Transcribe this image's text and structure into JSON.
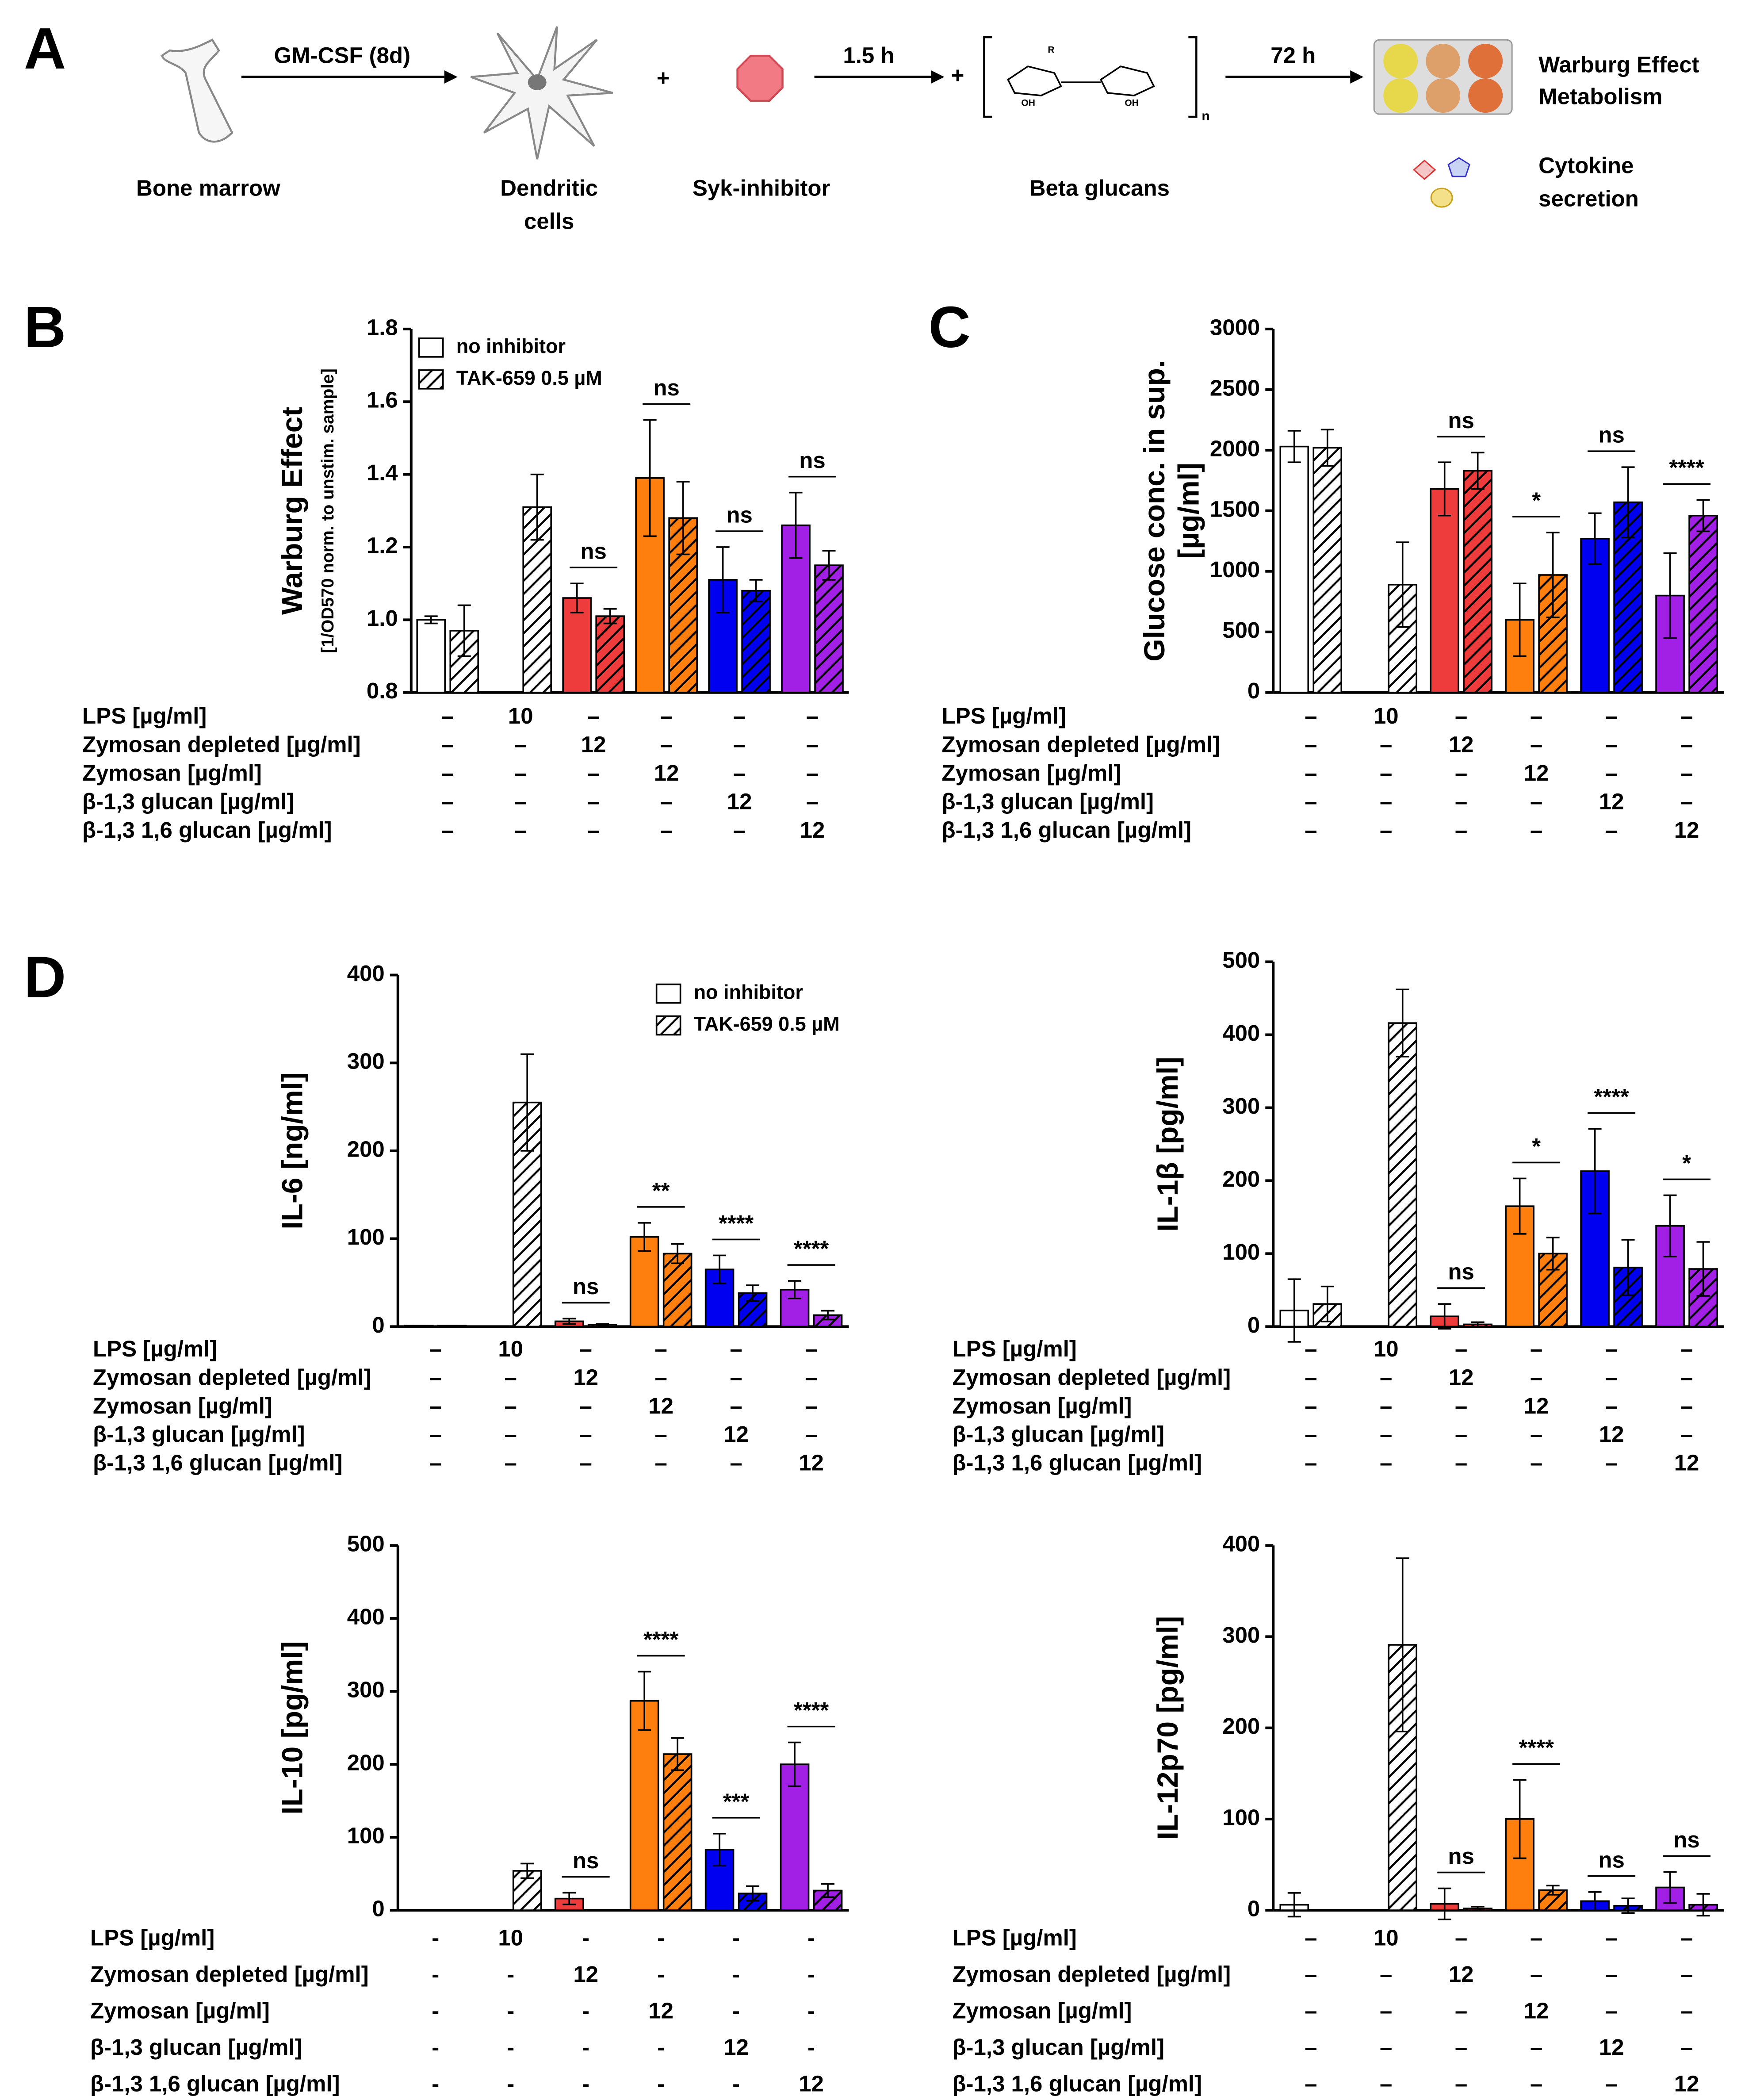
{
  "scheme": {
    "panel": "A",
    "arrows": [
      "GM-CSF (8d)",
      "1.5 h",
      "72 h"
    ],
    "plus": "+",
    "labels": [
      "Bone marrow",
      [
        "Dendritic",
        "cells"
      ],
      "Syk-inhibitor",
      "Beta glucans"
    ],
    "outputs": [
      [
        "Warburg Effect",
        "Metabolism"
      ],
      [
        "Cytokine",
        "secretion"
      ]
    ],
    "structure": {
      "r": "R",
      "oh": "OH",
      "n": "n"
    }
  },
  "chart_data": [
    {
      "type": "bar",
      "panel": "B",
      "ylabel": [
        "Warburg Effect",
        "[1/OD570 norm. to unstim. sample]"
      ],
      "categories": [
        null,
        null,
        null,
        null,
        null,
        null
      ],
      "colors": [
        "#ffffff",
        "#ffffff",
        "#ee3b3b",
        "#ff7f0e",
        "#0000f0",
        "#a21fe6"
      ],
      "series": [
        {
          "name": "no inhibitor",
          "values": [
            1.0,
            null,
            1.06,
            1.39,
            1.11,
            1.26
          ],
          "errors": [
            0.01,
            null,
            0.04,
            0.16,
            0.09,
            0.09
          ]
        },
        {
          "name": "TAK-659 0.5 µM",
          "hatch": true,
          "values": [
            0.97,
            1.31,
            1.01,
            1.28,
            1.08,
            1.15
          ],
          "errors": [
            0.07,
            0.09,
            0.02,
            0.1,
            0.03,
            0.04
          ]
        }
      ],
      "annotations": [
        null,
        null,
        "ns",
        "ns",
        "ns",
        "ns"
      ],
      "legend": "upper left",
      "ylim": [
        0.8,
        1.8
      ],
      "yticks": [
        0.8,
        {
          "value": 1,
          "label": "1.0"
        },
        1.2,
        1.4,
        1.6,
        1.8
      ],
      "conditions": [
        {
          "label": "LPS [µg/ml]",
          "cells": [
            "–",
            "10",
            "–",
            "–",
            "–",
            "–"
          ]
        },
        {
          "label": "Zymosan depleted [µg/ml]",
          "cells": [
            "–",
            "–",
            "12",
            "–",
            "–",
            "–"
          ]
        },
        {
          "label": "Zymosan [µg/ml]",
          "cells": [
            "–",
            "–",
            "–",
            "12",
            "–",
            "–"
          ]
        },
        {
          "label": "β-1,3 glucan [µg/ml]",
          "cells": [
            "–",
            "–",
            "–",
            "–",
            "12",
            "–"
          ]
        },
        {
          "label": "β-1,3 1,6 glucan [µg/ml]",
          "cells": [
            "–",
            "–",
            "–",
            "–",
            "–",
            "12"
          ]
        }
      ]
    },
    {
      "type": "bar",
      "panel": "C",
      "ylabel": [
        "Glucose conc. in sup.",
        "[µg/ml]"
      ],
      "categories": [
        null,
        null,
        null,
        null,
        null,
        null
      ],
      "colors": [
        "#ffffff",
        "#ffffff",
        "#ee3b3b",
        "#ff7f0e",
        "#0000f0",
        "#a21fe6"
      ],
      "series": [
        {
          "values": [
            2030,
            null,
            1680,
            600,
            1270,
            800
          ],
          "errors": [
            130,
            null,
            220,
            300,
            210,
            350
          ]
        },
        {
          "hatch": true,
          "values": [
            2020,
            890,
            1830,
            970,
            1570,
            1460
          ],
          "errors": [
            150,
            350,
            150,
            350,
            290,
            130
          ]
        }
      ],
      "annotations": [
        null,
        null,
        "ns",
        "*",
        "ns",
        "****"
      ],
      "ylim": [
        0,
        3000
      ],
      "yticks": [
        0,
        500,
        1000,
        1500,
        2000,
        2500,
        3000
      ],
      "conditions": [
        {
          "label": "LPS [µg/ml]",
          "cells": [
            "–",
            "10",
            "–",
            "–",
            "–",
            "–"
          ]
        },
        {
          "label": "Zymosan depleted [µg/ml]",
          "cells": [
            "–",
            "–",
            "12",
            "–",
            "–",
            "–"
          ]
        },
        {
          "label": "Zymosan [µg/ml]",
          "cells": [
            "–",
            "–",
            "–",
            "12",
            "–",
            "–"
          ]
        },
        {
          "label": "β-1,3 glucan [µg/ml]",
          "cells": [
            "–",
            "–",
            "–",
            "–",
            "12",
            "–"
          ]
        },
        {
          "label": "β-1,3 1,6 glucan [µg/ml]",
          "cells": [
            "–",
            "–",
            "–",
            "–",
            "–",
            "12"
          ]
        }
      ]
    },
    {
      "type": "bar",
      "panel": "D",
      "ylabel": [
        "IL-6 [ng/ml]"
      ],
      "categories": [
        null,
        null,
        null,
        null,
        null,
        null
      ],
      "colors": [
        "#ffffff",
        "#ffffff",
        "#ee3b3b",
        "#ff7f0e",
        "#0000f0",
        "#a21fe6"
      ],
      "series": [
        {
          "name": "no inhibitor",
          "values": [
            1,
            null,
            6,
            102,
            65,
            42
          ],
          "errors": [
            0,
            null,
            3,
            16,
            16,
            10
          ]
        },
        {
          "name": "TAK-659 0.5 µM",
          "hatch": true,
          "values": [
            1,
            255,
            2,
            83,
            38,
            13
          ],
          "errors": [
            0,
            55,
            1,
            11,
            9,
            5
          ]
        }
      ],
      "annotations": [
        null,
        null,
        "ns",
        "**",
        "****",
        "****"
      ],
      "legend": "upper right",
      "ylim": [
        0,
        400
      ],
      "yticks": [
        0,
        100,
        200,
        300,
        400
      ],
      "conditions": [
        {
          "label": "LPS [µg/ml]",
          "cells": [
            "–",
            "10",
            "–",
            "–",
            "–",
            "–"
          ]
        },
        {
          "label": "Zymosan depleted [µg/ml]",
          "cells": [
            "–",
            "–",
            "12",
            "–",
            "–",
            "–"
          ]
        },
        {
          "label": "Zymosan [µg/ml]",
          "cells": [
            "–",
            "–",
            "–",
            "12",
            "–",
            "–"
          ]
        },
        {
          "label": "β-1,3 glucan [µg/ml]",
          "cells": [
            "–",
            "–",
            "–",
            "–",
            "12",
            "–"
          ]
        },
        {
          "label": "β-1,3 1,6 glucan [µg/ml]",
          "cells": [
            "–",
            "–",
            "–",
            "–",
            "–",
            "12"
          ]
        }
      ]
    },
    {
      "type": "bar",
      "ylabel": [
        "IL-1β [pg/ml]"
      ],
      "categories": [
        null,
        null,
        null,
        null,
        null,
        null
      ],
      "colors": [
        "#ffffff",
        "#ffffff",
        "#ee3b3b",
        "#ff7f0e",
        "#0000f0",
        "#a21fe6"
      ],
      "series": [
        {
          "values": [
            22,
            null,
            14,
            165,
            213,
            138
          ],
          "errors": [
            43,
            null,
            17,
            38,
            58,
            42
          ]
        },
        {
          "hatch": true,
          "values": [
            31,
            416,
            3,
            100,
            81,
            79
          ],
          "errors": [
            24,
            46,
            3,
            22,
            38,
            37
          ]
        }
      ],
      "annotations": [
        null,
        null,
        "ns",
        "*",
        "****",
        "*"
      ],
      "ylim": [
        0,
        500
      ],
      "yticks": [
        0,
        100,
        200,
        300,
        400,
        500
      ],
      "conditions": [
        {
          "label": "LPS [µg/ml]",
          "cells": [
            "–",
            "10",
            "–",
            "–",
            "–",
            "–"
          ]
        },
        {
          "label": "Zymosan depleted [µg/ml]",
          "cells": [
            "–",
            "–",
            "12",
            "–",
            "–",
            "–"
          ]
        },
        {
          "label": "Zymosan [µg/ml]",
          "cells": [
            "–",
            "–",
            "–",
            "12",
            "–",
            "–"
          ]
        },
        {
          "label": "β-1,3 glucan [µg/ml]",
          "cells": [
            "–",
            "–",
            "–",
            "–",
            "12",
            "–"
          ]
        },
        {
          "label": "β-1,3 1,6 glucan [µg/ml]",
          "cells": [
            "–",
            "–",
            "–",
            "–",
            "–",
            "12"
          ]
        }
      ]
    },
    {
      "type": "bar",
      "ylabel": [
        "IL-10 [pg/ml]"
      ],
      "categories": [
        null,
        null,
        null,
        null,
        null,
        null
      ],
      "colors": [
        "#ffffff",
        "#ffffff",
        "#ee3b3b",
        "#ff7f0e",
        "#0000f0",
        "#a21fe6"
      ],
      "series": [
        {
          "values": [
            0,
            null,
            16,
            287,
            83,
            200
          ],
          "errors": [
            0,
            null,
            8,
            40,
            22,
            30
          ]
        },
        {
          "hatch": true,
          "values": [
            0,
            54,
            0,
            214,
            23,
            27
          ],
          "errors": [
            0,
            10,
            0,
            22,
            10,
            9
          ]
        }
      ],
      "annotations": [
        null,
        null,
        "ns",
        "****",
        "***",
        "****"
      ],
      "ylim": [
        0,
        500
      ],
      "yticks": [
        0,
        100,
        200,
        300,
        400,
        500
      ],
      "conditions": [
        {
          "label": "LPS [µg/ml]",
          "cells": [
            "-",
            "10",
            "-",
            "-",
            "-",
            "-"
          ]
        },
        {
          "label": "Zymosan depleted [µg/ml]",
          "cells": [
            "-",
            "-",
            "12",
            "-",
            "-",
            "-"
          ]
        },
        {
          "label": "Zymosan [µg/ml]",
          "cells": [
            "-",
            "-",
            "-",
            "12",
            "-",
            "-"
          ]
        },
        {
          "label": "β-1,3 glucan [µg/ml]",
          "cells": [
            "-",
            "-",
            "-",
            "-",
            "12",
            "-"
          ]
        },
        {
          "label": "β-1,3 1,6 glucan [µg/ml]",
          "cells": [
            "-",
            "-",
            "-",
            "-",
            "-",
            "12"
          ]
        }
      ]
    },
    {
      "type": "bar",
      "ylabel": [
        "IL-12p70 [pg/ml]"
      ],
      "categories": [
        null,
        null,
        null,
        null,
        null,
        null
      ],
      "colors": [
        "#ffffff",
        "#ffffff",
        "#ee3b3b",
        "#ff7f0e",
        "#0000f0",
        "#a21fe6"
      ],
      "series": [
        {
          "values": [
            6,
            null,
            7,
            100,
            10,
            25
          ],
          "errors": [
            13,
            null,
            17,
            43,
            10,
            17
          ]
        },
        {
          "hatch": true,
          "values": [
            0,
            291,
            2,
            22,
            5,
            6
          ],
          "errors": [
            0,
            95,
            2,
            5,
            8,
            12
          ]
        }
      ],
      "annotations": [
        null,
        null,
        "ns",
        "****",
        "ns",
        "ns"
      ],
      "ylim": [
        0,
        400
      ],
      "yticks": [
        0,
        100,
        200,
        300,
        400
      ],
      "conditions": [
        {
          "label": "LPS [µg/ml]",
          "cells": [
            "–",
            "10",
            "–",
            "–",
            "–",
            "–"
          ]
        },
        {
          "label": "Zymosan depleted [µg/ml]",
          "cells": [
            "–",
            "–",
            "12",
            "–",
            "–",
            "–"
          ]
        },
        {
          "label": "Zymosan [µg/ml]",
          "cells": [
            "–",
            "–",
            "–",
            "12",
            "–",
            "–"
          ]
        },
        {
          "label": "β-1,3 glucan [µg/ml]",
          "cells": [
            "–",
            "–",
            "–",
            "–",
            "12",
            "–"
          ]
        },
        {
          "label": "β-1,3 1,6 glucan [µg/ml]",
          "cells": [
            "–",
            "–",
            "–",
            "–",
            "–",
            "12"
          ]
        }
      ]
    }
  ]
}
